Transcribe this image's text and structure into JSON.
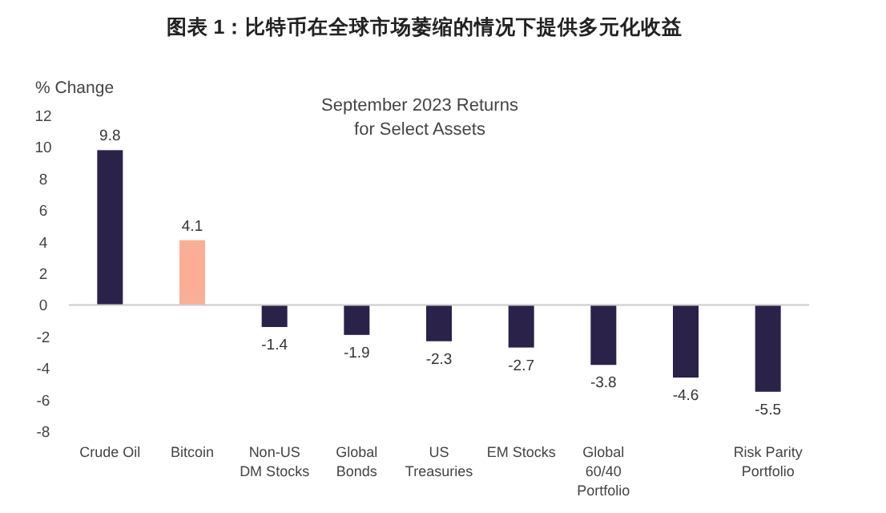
{
  "chart_data": {
    "type": "bar",
    "title": "图表 1：比特币在全球市场萎缩的情况下提供多元化收益",
    "subtitle": "September 2023 Returns\nfor Select Assets",
    "ylabel": "% Change",
    "categories": [
      "Crude Oil",
      "Bitcoin",
      "Non-US\nDM Stocks",
      "Global\nBonds",
      "US\nTreasuries",
      "EM Stocks",
      "Global\n60/40\nPortfolio",
      null,
      "Risk Parity\nPortfolio"
    ],
    "values": [
      9.8,
      4.1,
      -1.4,
      -1.9,
      -2.3,
      -2.7,
      -3.8,
      -4.6,
      -5.5
    ],
    "colors": [
      "#2b2249",
      "#fbae94",
      "#2b2249",
      "#2b2249",
      "#2b2249",
      "#2b2249",
      "#2b2249",
      "#2b2249",
      "#2b2249"
    ],
    "ylim": [
      -8,
      12
    ],
    "yticks": [
      -8,
      -6,
      -4,
      -2,
      0,
      2,
      4,
      6,
      8,
      10,
      12
    ],
    "data_labels": true
  }
}
